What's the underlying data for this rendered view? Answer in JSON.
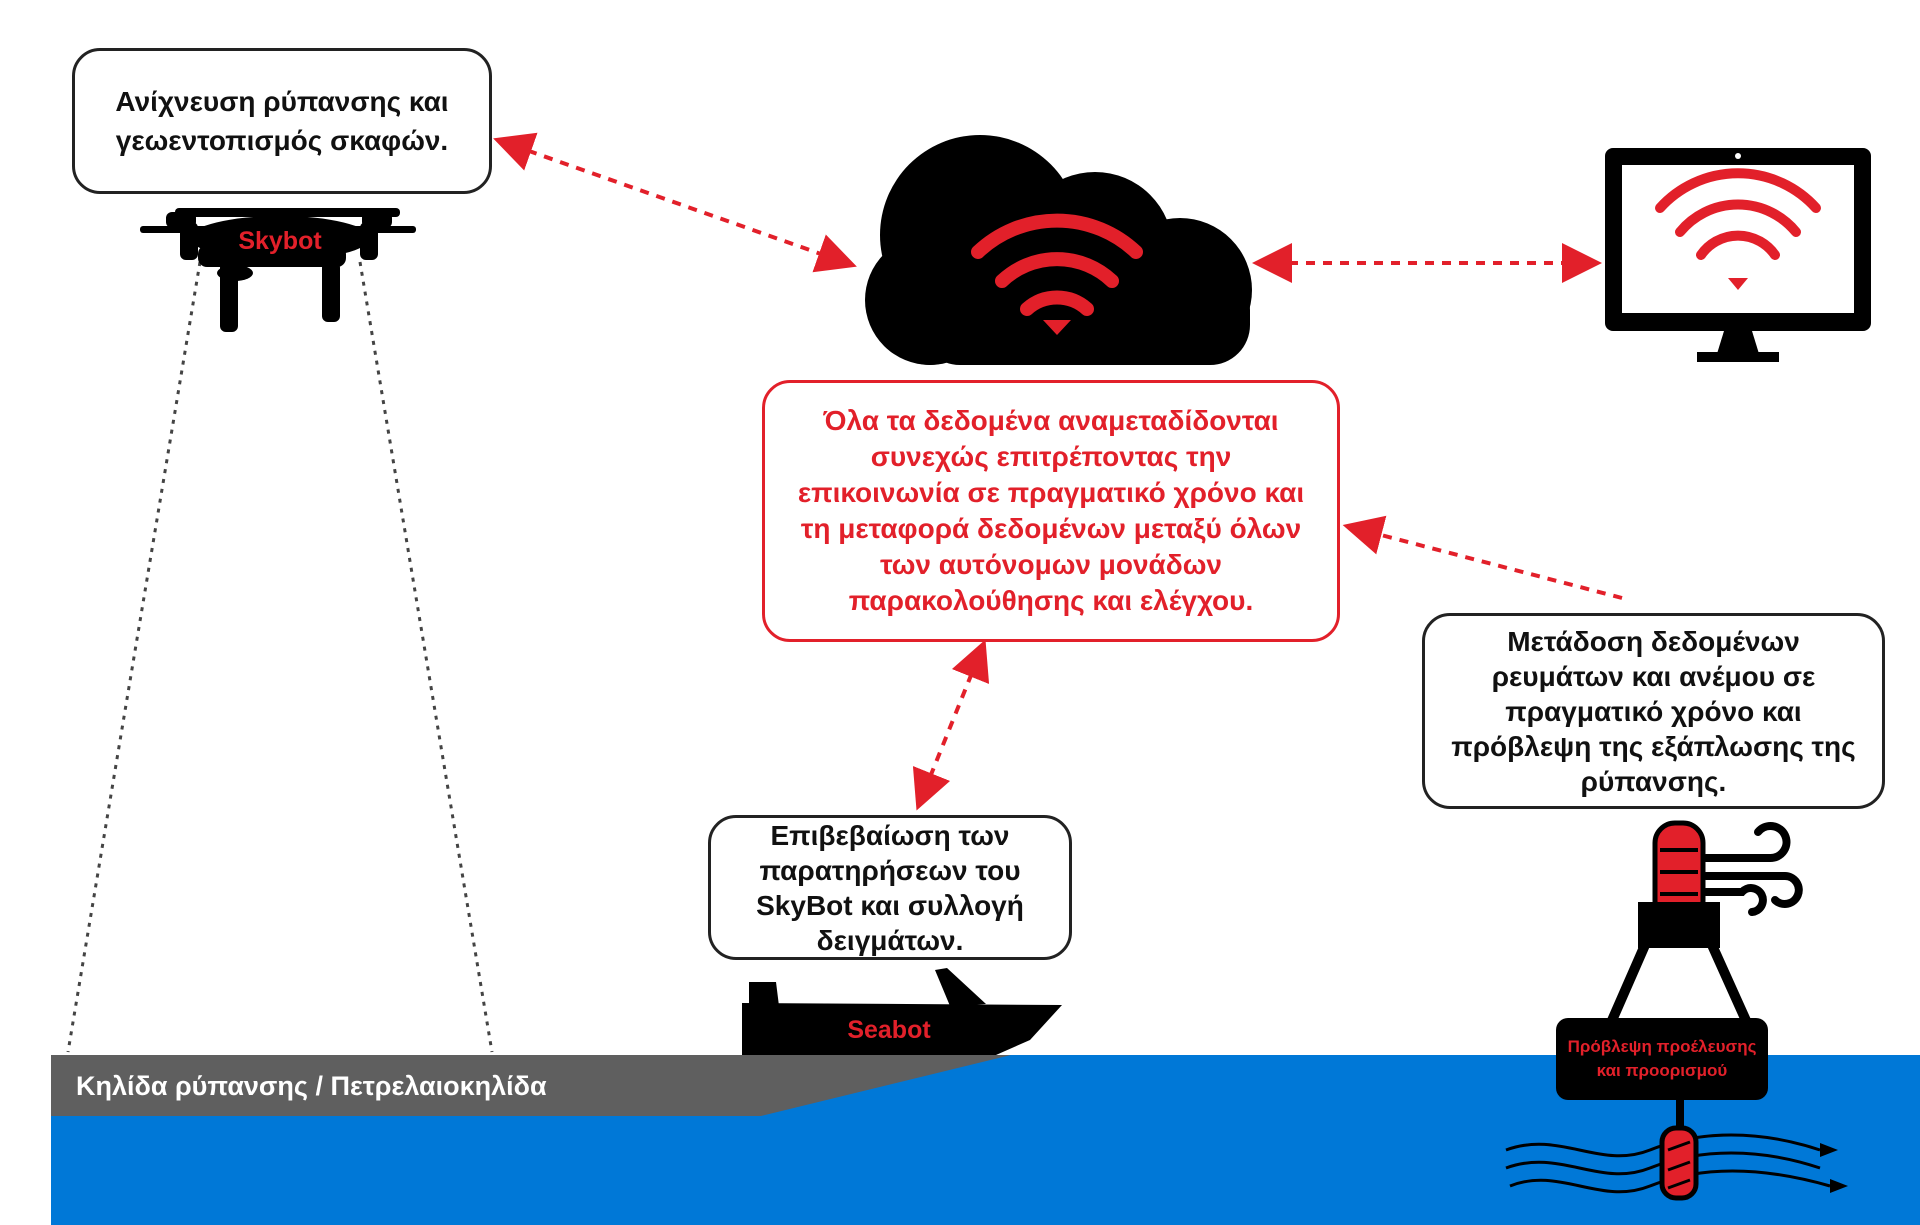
{
  "skybot_bubble": {
    "text": "Ανίχνευση ρύπανσης και\nγεωεντοπισμός σκαφών."
  },
  "center_bubble": {
    "text": "Όλα τα δεδομένα αναμεταδίδονται\nσυνεχώς επιτρέποντας την\nεπικοινωνία σε πραγματικό χρόνο και\nτη μεταφορά δεδομένων μεταξύ όλων\nτων αυτόνομων μονάδων\nπαρακολούθησης και ελέγχου."
  },
  "seabot_bubble": {
    "text": "Επιβεβαίωση των\nπαρατηρήσεων του\nSkyBot και συλλογή\nδειγμάτων."
  },
  "buoy_bubble": {
    "text": "Μετάδοση δεδομένων\nρευμάτων και ανέμου σε\nπραγματικό χρόνο και\nπρόβλεψη της εξάπλωσης της\nρύπανσης."
  },
  "drone": {
    "label": "Skybot"
  },
  "boat": {
    "label": "Seabot"
  },
  "slick": {
    "label": "Κηλίδα ρύπανσης / Πετρελαιοκηλίδα"
  },
  "buoy": {
    "label": "Πρόβλεψη προέλευσης\nκαι προορισμού"
  },
  "colors": {
    "accent": "#e2202a",
    "sea": "#0078d7",
    "slick": "#5f5f5f",
    "ink": "#000000"
  },
  "icons": [
    "cloud-icon",
    "wifi-icon",
    "monitor-icon",
    "drone-icon",
    "boat-icon",
    "buoy-icon",
    "wind-icon",
    "current-icon"
  ]
}
